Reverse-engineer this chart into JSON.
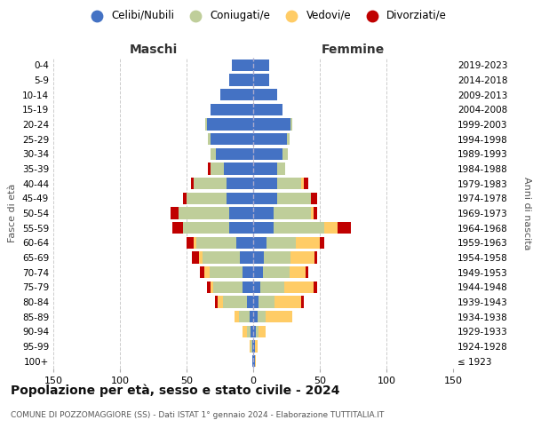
{
  "age_groups": [
    "100+",
    "95-99",
    "90-94",
    "85-89",
    "80-84",
    "75-79",
    "70-74",
    "65-69",
    "60-64",
    "55-59",
    "50-54",
    "45-49",
    "40-44",
    "35-39",
    "30-34",
    "25-29",
    "20-24",
    "15-19",
    "10-14",
    "5-9",
    "0-4"
  ],
  "birth_years": [
    "≤ 1923",
    "1924-1928",
    "1929-1933",
    "1934-1938",
    "1939-1943",
    "1944-1948",
    "1949-1953",
    "1954-1958",
    "1959-1963",
    "1964-1968",
    "1969-1973",
    "1974-1978",
    "1979-1983",
    "1984-1988",
    "1989-1993",
    "1994-1998",
    "1999-2003",
    "2004-2008",
    "2009-2013",
    "2014-2018",
    "2019-2023"
  ],
  "male": {
    "celibi": [
      1,
      1,
      2,
      3,
      5,
      8,
      8,
      10,
      13,
      18,
      18,
      20,
      20,
      22,
      28,
      32,
      35,
      32,
      25,
      18,
      16
    ],
    "coniugati": [
      0,
      1,
      3,
      8,
      18,
      22,
      25,
      28,
      30,
      35,
      38,
      30,
      25,
      10,
      4,
      2,
      1,
      0,
      0,
      0,
      0
    ],
    "vedovi": [
      0,
      1,
      3,
      3,
      4,
      2,
      4,
      3,
      2,
      0,
      0,
      0,
      0,
      0,
      0,
      0,
      0,
      0,
      0,
      0,
      0
    ],
    "divorziati": [
      0,
      0,
      0,
      0,
      2,
      3,
      3,
      5,
      5,
      8,
      6,
      3,
      2,
      2,
      0,
      0,
      0,
      0,
      0,
      0,
      0
    ]
  },
  "female": {
    "nubili": [
      1,
      1,
      2,
      3,
      4,
      5,
      7,
      8,
      10,
      15,
      15,
      18,
      18,
      18,
      22,
      25,
      28,
      22,
      18,
      12,
      12
    ],
    "coniugate": [
      0,
      0,
      2,
      6,
      12,
      18,
      20,
      20,
      22,
      38,
      28,
      25,
      18,
      6,
      4,
      2,
      1,
      0,
      0,
      0,
      0
    ],
    "vedove": [
      1,
      2,
      5,
      20,
      20,
      22,
      12,
      18,
      18,
      10,
      2,
      0,
      2,
      0,
      0,
      0,
      0,
      0,
      0,
      0,
      0
    ],
    "divorziate": [
      0,
      0,
      0,
      0,
      2,
      3,
      2,
      2,
      3,
      10,
      3,
      5,
      3,
      0,
      0,
      0,
      0,
      0,
      0,
      0,
      0
    ]
  },
  "colors": {
    "celibi": "#4472C4",
    "coniugati": "#BFCE9A",
    "vedovi": "#FFCC66",
    "divorziati": "#C00000"
  },
  "title": "Popolazione per età, sesso e stato civile - 2024",
  "subtitle": "COMUNE DI POZZOMAGGIORE (SS) - Dati ISTAT 1° gennaio 2024 - Elaborazione TUTTITALIA.IT",
  "xlabel_left": "Maschi",
  "xlabel_right": "Femmine",
  "ylabel_left": "Fasce di età",
  "ylabel_right": "Anni di nascita",
  "xlim": 150,
  "legend_labels": [
    "Celibi/Nubili",
    "Coniugati/e",
    "Vedovi/e",
    "Divorziati/e"
  ]
}
